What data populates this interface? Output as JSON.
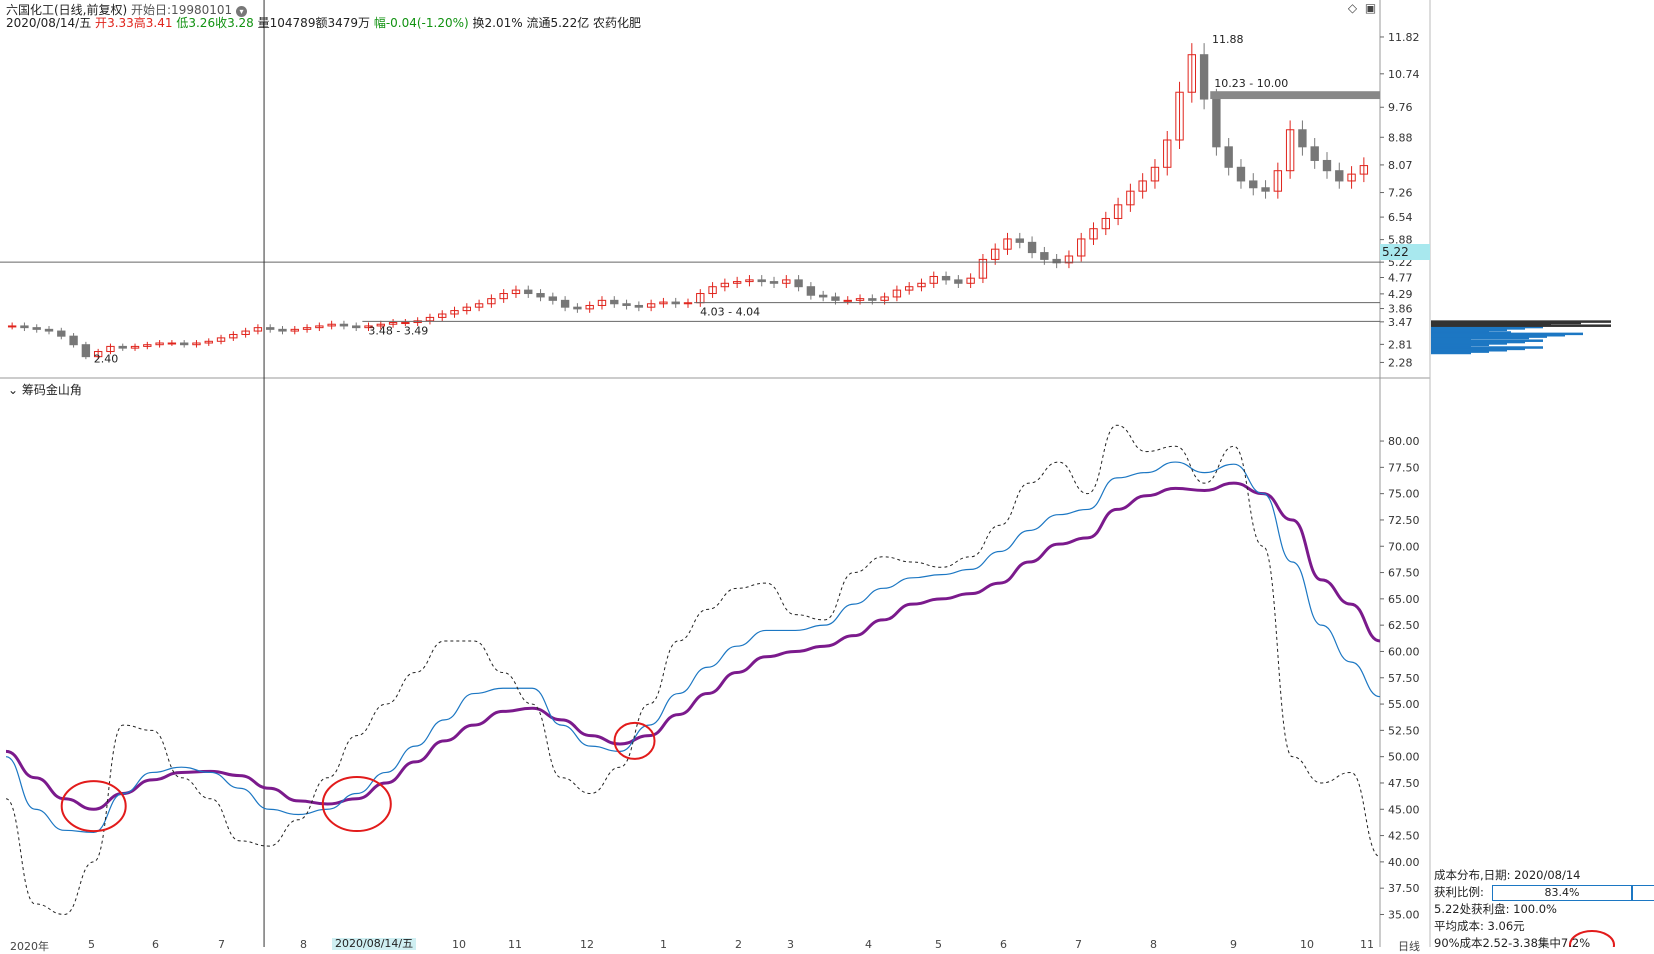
{
  "header": {
    "title": "六国化工(日线,前复权)",
    "start_label": "开始日:19980101",
    "date": "2020/08/14/五",
    "open_label": "开",
    "open": "3.33",
    "high_label": "高",
    "high": "3.41",
    "low_label": "低",
    "low": "3.26",
    "close_label": "收",
    "close": "3.28",
    "volume": "量104789",
    "amount": "额3479万",
    "change": "幅-0.04(-1.20%)",
    "turnover": "换2.01%",
    "float_cap": "流通5.22亿",
    "industry": "农药化肥"
  },
  "colors": {
    "up": "#e0241c",
    "down": "#119211",
    "ma_purple": "#7b1a8c",
    "ma_blue": "#1c77c3",
    "highlight": "#e21b1b"
  },
  "chart_data": [
    {
      "type": "line",
      "name": "price",
      "ylim": [
        2.0,
        12.2
      ],
      "y_ticks": [
        "11.82",
        "10.74",
        "9.76",
        "8.88",
        "8.07",
        "7.26",
        "6.54",
        "5.88",
        "5.22",
        "4.77",
        "4.29",
        "3.86",
        "3.47",
        "2.81",
        "2.28"
      ],
      "annotations": [
        "11.88",
        "10.23 - 10.00",
        "5.22",
        "4.03 - 4.04",
        "3.48 - 3.49",
        "2.40"
      ],
      "close": [
        3.35,
        3.3,
        3.25,
        3.2,
        3.05,
        2.8,
        2.45,
        2.6,
        2.75,
        2.7,
        2.75,
        2.8,
        2.85,
        2.85,
        2.8,
        2.85,
        2.9,
        3.0,
        3.1,
        3.2,
        3.3,
        3.25,
        3.2,
        3.25,
        3.3,
        3.35,
        3.4,
        3.35,
        3.3,
        3.35,
        3.4,
        3.45,
        3.45,
        3.5,
        3.6,
        3.7,
        3.8,
        3.9,
        4.0,
        4.15,
        4.3,
        4.4,
        4.3,
        4.2,
        4.1,
        3.9,
        3.85,
        3.95,
        4.1,
        4.0,
        3.95,
        3.9,
        4.0,
        4.05,
        4.0,
        4.03,
        4.3,
        4.5,
        4.6,
        4.65,
        4.7,
        4.65,
        4.6,
        4.7,
        4.5,
        4.25,
        4.2,
        4.1,
        4.1,
        4.15,
        4.1,
        4.2,
        4.4,
        4.5,
        4.6,
        4.8,
        4.7,
        4.6,
        4.75,
        5.3,
        5.6,
        5.9,
        5.8,
        5.5,
        5.3,
        5.2,
        5.4,
        5.9,
        6.2,
        6.5,
        6.9,
        7.3,
        7.6,
        8.0,
        8.8,
        10.2,
        11.3,
        10.0,
        8.6,
        8.0,
        7.6,
        7.4,
        7.3,
        7.9,
        9.1,
        8.6,
        8.2,
        7.9,
        7.6,
        7.8,
        8.05
      ],
      "volume_profile": {
        "price_levels": [
          "3.47",
          "2.81"
        ],
        "profit_pct": "83.4%"
      }
    },
    {
      "type": "line",
      "name": "indicator",
      "title": "筹码金山角",
      "ylim": [
        34,
        82
      ],
      "y_ticks": [
        "80.00",
        "77.50",
        "75.00",
        "72.50",
        "70.00",
        "67.50",
        "65.00",
        "62.50",
        "60.00",
        "57.50",
        "55.00",
        "52.50",
        "50.00",
        "47.50",
        "45.00",
        "42.50",
        "40.00",
        "37.50",
        "35.00"
      ],
      "series": [
        {
          "values": [
            50.5,
            48.0,
            46.0,
            45.0,
            46.5,
            47.8,
            48.5,
            48.6,
            48.2,
            47.0,
            45.8,
            45.5,
            46.0,
            47.5,
            49.5,
            51.5,
            53.0,
            54.3,
            54.6,
            53.5,
            52.0,
            51.2,
            52.0,
            54.0,
            56.0,
            58.0,
            59.5,
            60.0,
            60.5,
            61.5,
            63.0,
            64.5,
            65.0,
            65.5,
            66.5,
            68.5,
            70.2,
            70.8,
            73.5,
            74.8,
            75.5,
            75.3,
            76.0,
            75.0,
            72.5,
            66.8,
            64.5,
            61.0
          ]
        },
        {
          "values": [
            50.0,
            45.0,
            43.0,
            42.8,
            46.5,
            48.5,
            49.0,
            48.5,
            47.0,
            45.0,
            44.5,
            45.0,
            46.5,
            48.5,
            51.0,
            53.5,
            56.0,
            56.5,
            56.5,
            53.0,
            51.0,
            50.5,
            53.0,
            56.0,
            58.5,
            60.5,
            62.0,
            62.0,
            62.5,
            64.5,
            66.0,
            67.0,
            67.3,
            67.8,
            69.5,
            71.5,
            73.0,
            73.5,
            76.5,
            77.0,
            78.0,
            77.0,
            77.8,
            75.0,
            68.5,
            62.5,
            59.0,
            55.7
          ]
        },
        {
          "values": [
            46.0,
            36.0,
            35.0,
            40.0,
            53.0,
            52.5,
            48.0,
            46.0,
            42.0,
            41.5,
            44.0,
            48.0,
            52.0,
            55.0,
            58.0,
            61.0,
            61.0,
            58.0,
            55.0,
            48.0,
            46.5,
            49.0,
            55.0,
            61.0,
            64.0,
            66.0,
            66.5,
            63.5,
            63.0,
            67.5,
            69.0,
            68.5,
            68.0,
            69.0,
            72.0,
            76.0,
            78.0,
            75.0,
            81.5,
            79.0,
            79.5,
            76.0,
            79.5,
            70.0,
            50.0,
            47.5,
            48.5,
            40.5
          ]
        }
      ]
    }
  ],
  "x_labels": [
    "2020年",
    "5",
    "6",
    "7",
    "8",
    "2020/08/14/五",
    "10",
    "11",
    "12",
    "1",
    "2",
    "3",
    "4",
    "5",
    "6",
    "7",
    "8",
    "9",
    "10",
    "11",
    "日线"
  ],
  "cost": {
    "title": "成本分布,日期: 2020/08/14",
    "ratio_label": "获利比例:",
    "ratio": "83.4%",
    "profit_line": "5.22处获利盘: 100.0%",
    "avg_line": "平均成本: 3.06元",
    "range_line": "90%成本2.52-3.38集中7.2%"
  },
  "badge": "5.22",
  "icons": [
    "diamond-icon",
    "window-icon",
    "chevron-down-icon"
  ]
}
